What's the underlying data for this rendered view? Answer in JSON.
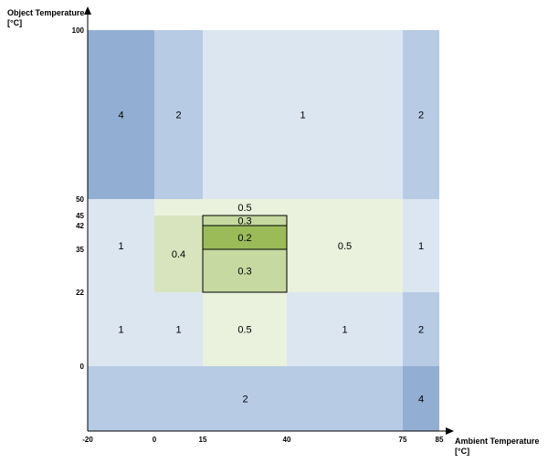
{
  "chart_data": {
    "type": "heatmap",
    "title": "",
    "xlabel": "Ambient Temperature",
    "xunit": "[°C]",
    "ylabel": "Object Temperature",
    "yunit": "[°C]",
    "x_ticks": [
      -20,
      0,
      15,
      40,
      75,
      85
    ],
    "y_ticks": [
      0,
      22,
      35,
      42,
      45,
      50,
      100
    ],
    "xlim": [
      -20,
      85
    ],
    "ylim": [
      -20,
      100
    ],
    "regions": [
      {
        "x": [
          -20,
          0
        ],
        "y": [
          50,
          100
        ],
        "label": "4",
        "color": "#93aed3"
      },
      {
        "x": [
          0,
          15
        ],
        "y": [
          50,
          100
        ],
        "label": "2",
        "color": "#b8cbe4"
      },
      {
        "x": [
          15,
          75
        ],
        "y": [
          50,
          100
        ],
        "label": "1",
        "color": "#dce6f1"
      },
      {
        "x": [
          75,
          85
        ],
        "y": [
          50,
          100
        ],
        "label": "2",
        "color": "#b8cbe4"
      },
      {
        "x": [
          -20,
          0
        ],
        "y": [
          22,
          50
        ],
        "label": "1",
        "color": "#dce6f1"
      },
      {
        "x": [
          0,
          15
        ],
        "y": [
          45,
          50
        ],
        "label": "",
        "color": "#eaf1dd"
      },
      {
        "x": [
          0,
          15
        ],
        "y": [
          22,
          45
        ],
        "label": "0.4",
        "color": "#d7e4bd"
      },
      {
        "x": [
          15,
          40
        ],
        "y": [
          45,
          50
        ],
        "label": "0.5",
        "color": "#eaf1dd"
      },
      {
        "x": [
          15,
          40
        ],
        "y": [
          42,
          45
        ],
        "label": "0.3",
        "color": "#c5d9a0",
        "outlined": true
      },
      {
        "x": [
          15,
          40
        ],
        "y": [
          35,
          42
        ],
        "label": "0.2",
        "color": "#9bbb59",
        "outlined": true
      },
      {
        "x": [
          15,
          40
        ],
        "y": [
          22,
          35
        ],
        "label": "0.3",
        "color": "#c5d9a0",
        "outlined": true
      },
      {
        "x": [
          40,
          75
        ],
        "y": [
          22,
          50
        ],
        "label": "0.5",
        "color": "#eaf1dd"
      },
      {
        "x": [
          75,
          85
        ],
        "y": [
          22,
          50
        ],
        "label": "1",
        "color": "#dce6f1"
      },
      {
        "x": [
          -20,
          0
        ],
        "y": [
          0,
          22
        ],
        "label": "1",
        "color": "#dce6f1"
      },
      {
        "x": [
          0,
          15
        ],
        "y": [
          0,
          22
        ],
        "label": "1",
        "color": "#dce6f1"
      },
      {
        "x": [
          15,
          40
        ],
        "y": [
          0,
          22
        ],
        "label": "0.5",
        "color": "#eaf1dd"
      },
      {
        "x": [
          40,
          75
        ],
        "y": [
          0,
          22
        ],
        "label": "1",
        "color": "#dce6f1"
      },
      {
        "x": [
          75,
          85
        ],
        "y": [
          0,
          22
        ],
        "label": "2",
        "color": "#b8cbe4"
      },
      {
        "x": [
          -20,
          75
        ],
        "y": [
          -20,
          0
        ],
        "label": "2",
        "color": "#b8cbe4"
      },
      {
        "x": [
          75,
          85
        ],
        "y": [
          -20,
          0
        ],
        "label": "4",
        "color": "#93aed3"
      }
    ]
  }
}
